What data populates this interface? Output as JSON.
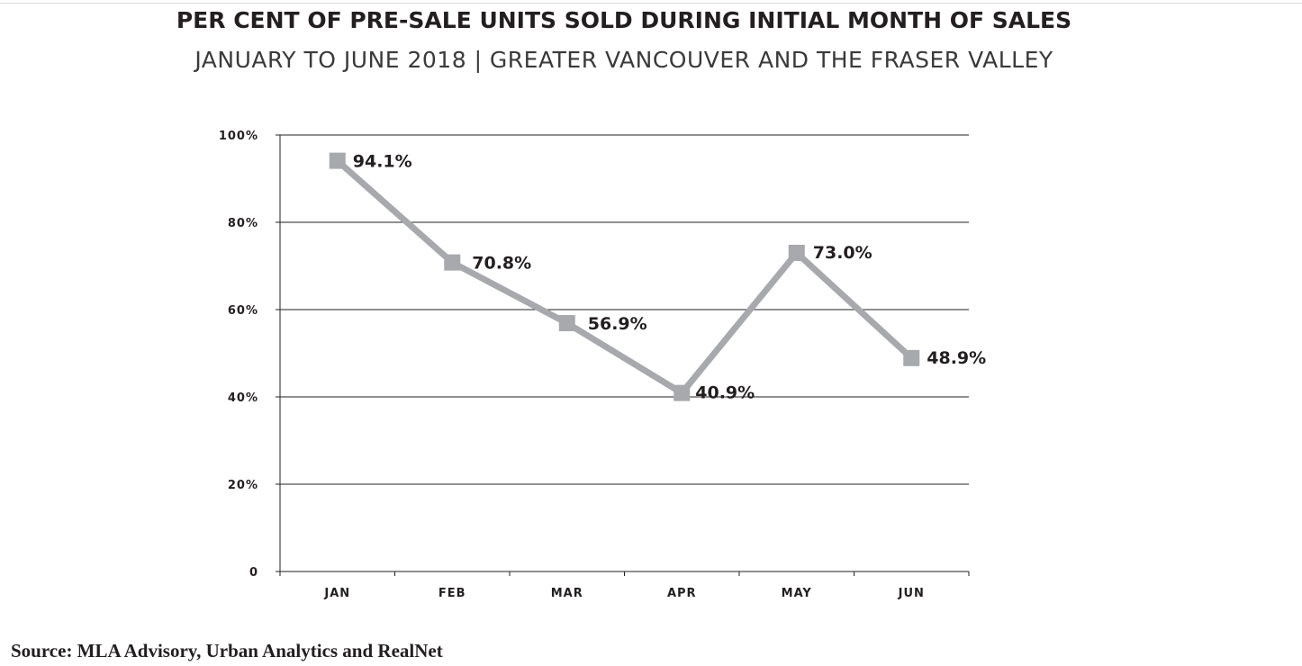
{
  "header": {
    "title": "PER CENT OF PRE-SALE UNITS SOLD DURING INITIAL MONTH OF SALES",
    "subtitle": "JANUARY TO JUNE 2018 | GREATER VANCOUVER AND THE FRASER VALLEY"
  },
  "footer": {
    "source": "Source: MLA Advisory, Urban Analytics and RealNet"
  },
  "chart_data": {
    "type": "line",
    "title": "PER CENT OF PRE-SALE UNITS SOLD DURING INITIAL MONTH OF SALES",
    "subtitle": "JANUARY TO JUNE 2018 | GREATER VANCOUVER AND THE FRASER VALLEY",
    "xlabel": "",
    "ylabel": "",
    "categories": [
      "JAN",
      "FEB",
      "MAR",
      "APR",
      "MAY",
      "JUN"
    ],
    "values": [
      94.1,
      70.8,
      56.9,
      40.9,
      73.0,
      48.9
    ],
    "data_labels": [
      "94.1%",
      "70.8%",
      "56.9%",
      "40.9%",
      "73.0%",
      "48.9%"
    ],
    "ylim": [
      0,
      100
    ],
    "yticks": [
      0,
      20,
      40,
      60,
      80,
      100
    ],
    "ytick_labels": [
      "0",
      "20%",
      "40%",
      "60%",
      "80%",
      "100%"
    ],
    "grid": true,
    "legend": "none",
    "marker": "square",
    "colors": {
      "line": "#a7a9ac",
      "grid": "#231f20",
      "axis": "#231f20",
      "text": "#231f20"
    }
  }
}
